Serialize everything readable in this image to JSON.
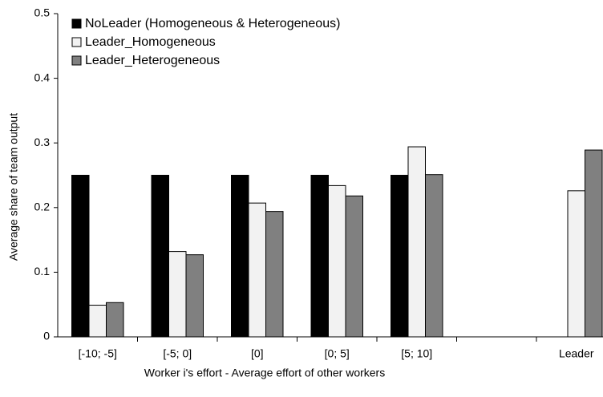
{
  "chart_data": {
    "type": "bar",
    "xlabel": "Worker i's effort - Average effort of other workers",
    "ylabel": "Average share of team output",
    "categories": [
      "[-10; -5]",
      "[-5; 0]",
      "[0]",
      "[0; 5]",
      "[5; 10]",
      null,
      "Leader"
    ],
    "series": [
      {
        "name": "NoLeader (Homogeneous & Heterogeneous)",
        "color": "#000000",
        "values": [
          0.25,
          0.25,
          0.25,
          0.25,
          0.25,
          null,
          0
        ]
      },
      {
        "name": "Leader_Homogeneous",
        "color": "#f2f2f2",
        "values": [
          0.049,
          0.132,
          0.207,
          0.234,
          0.294,
          null,
          0.226
        ]
      },
      {
        "name": "Leader_Heterogeneous",
        "color": "#808080",
        "values": [
          0.053,
          0.127,
          0.194,
          0.218,
          0.251,
          null,
          0.289
        ]
      }
    ],
    "ylim": [
      0,
      0.5
    ],
    "yticks": [
      0,
      0.1,
      0.2,
      0.3,
      0.4,
      0.5
    ],
    "legend": "upper left",
    "grid": false
  }
}
